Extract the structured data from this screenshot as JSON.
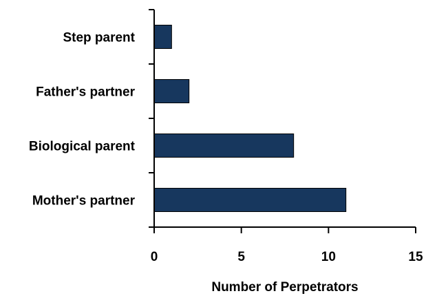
{
  "chart_data": {
    "type": "bar",
    "orientation": "horizontal",
    "categories": [
      "Mother's partner",
      "Biological parent",
      "Father's partner",
      "Step parent"
    ],
    "values": [
      11,
      8,
      2,
      1
    ],
    "xlabel": "Number of Perpetrators",
    "ylabel": "",
    "xlim": [
      0,
      15
    ],
    "xticks": [
      "0",
      "5",
      "10",
      "15"
    ],
    "grid": false,
    "legend": "none",
    "colors": {
      "bar_fill": "#17375e",
      "bar_stroke": "#000000",
      "axis": "#000000"
    }
  }
}
